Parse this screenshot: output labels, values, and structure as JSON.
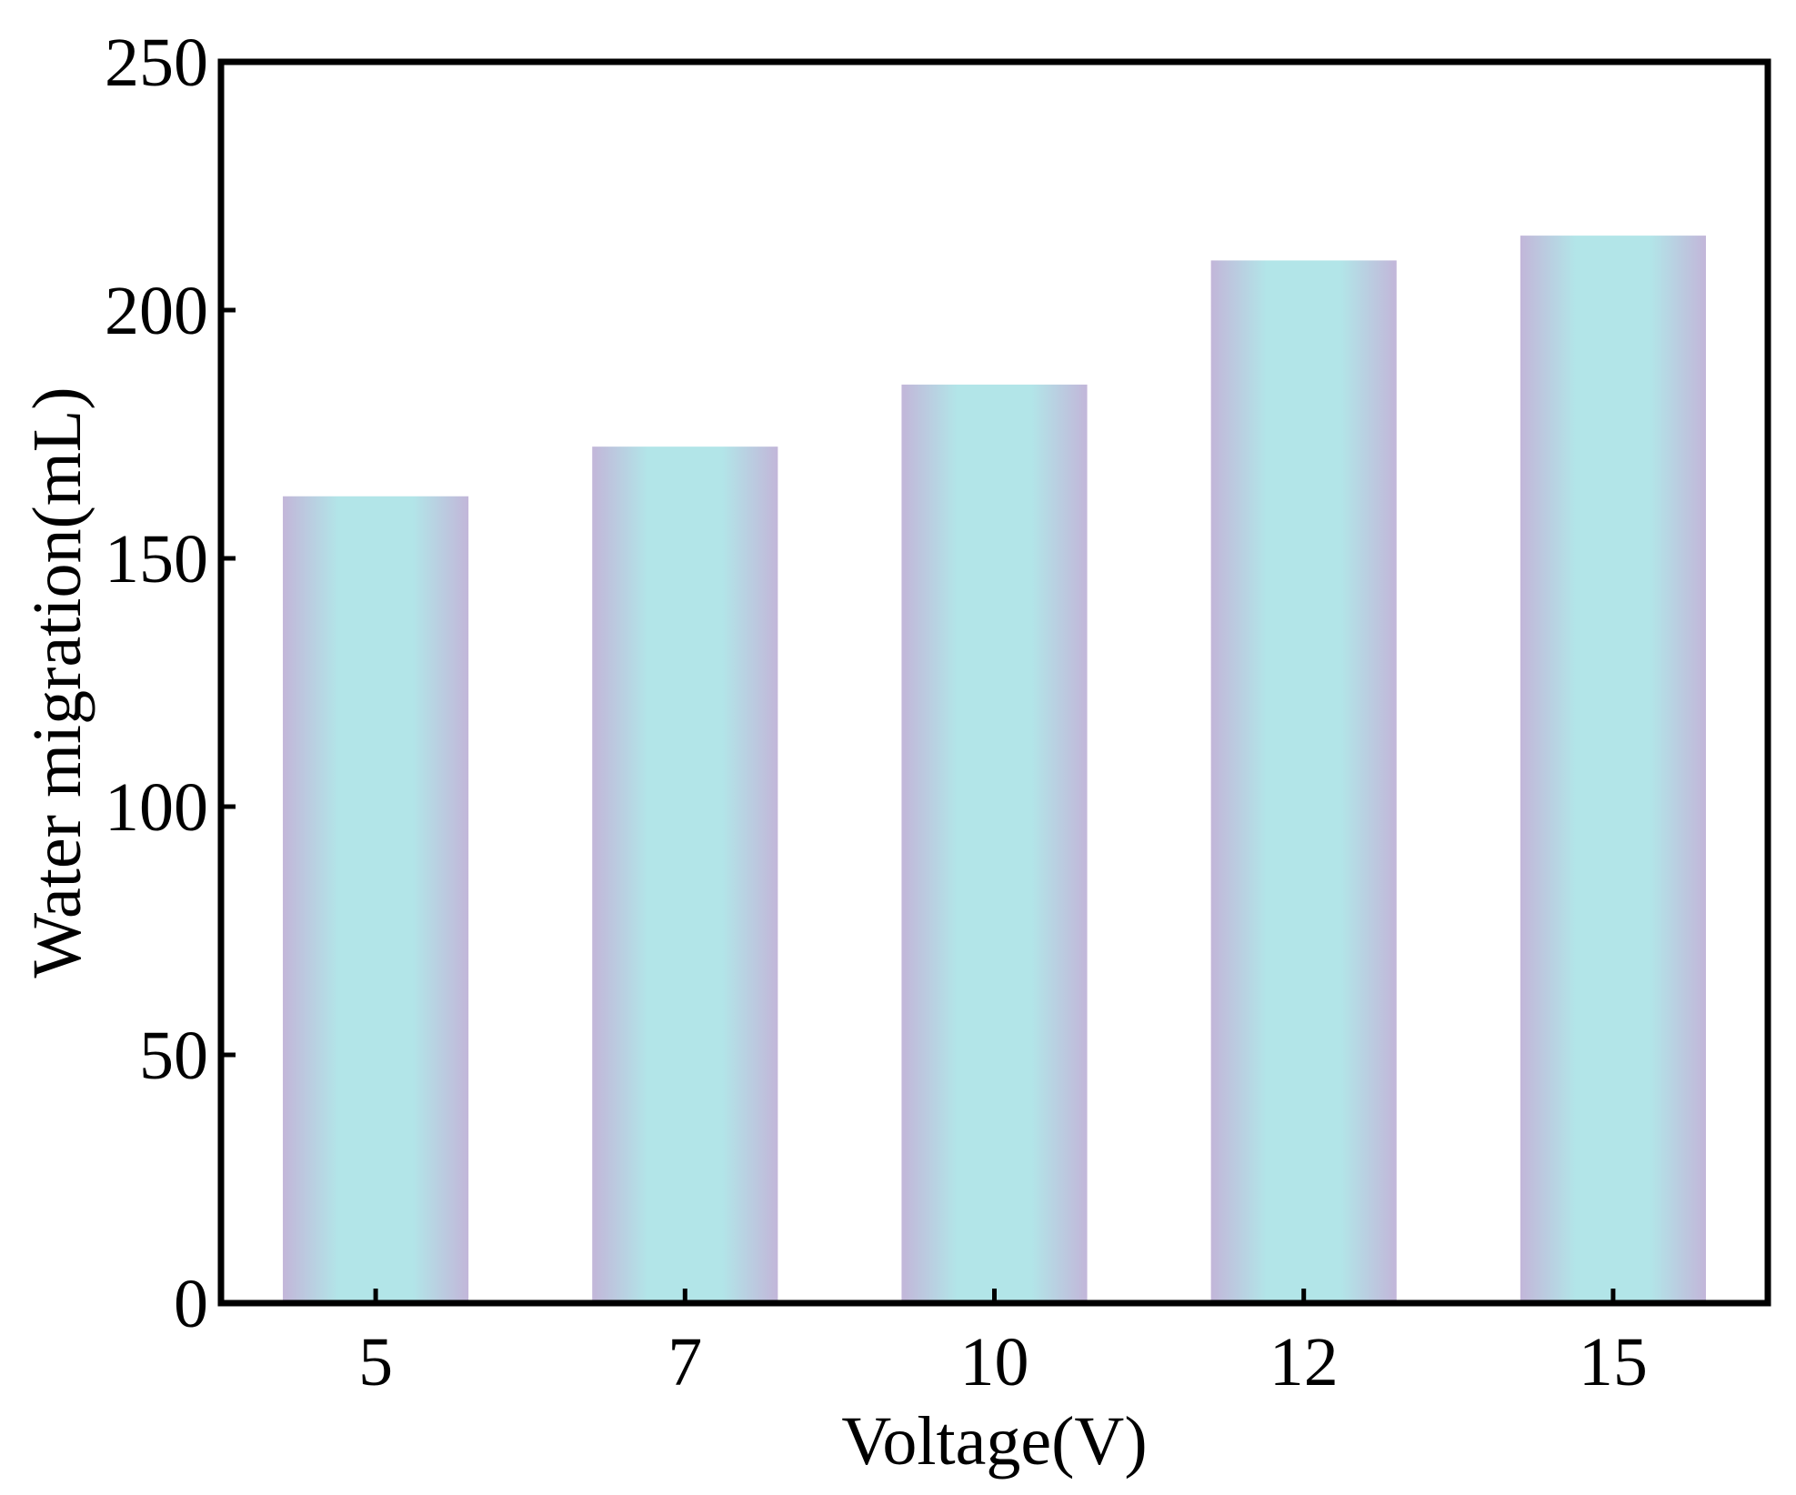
{
  "chart_data": {
    "type": "bar",
    "categories": [
      "5",
      "7",
      "10",
      "12",
      "15"
    ],
    "values": [
      162.5,
      172.5,
      185,
      210,
      215
    ],
    "title": "",
    "xlabel": "Voltage(V)",
    "ylabel": "Water migration(mL)",
    "ylim": [
      0,
      250
    ],
    "yticks": [
      0,
      50,
      100,
      150,
      200,
      250
    ],
    "grid": false,
    "legend": "none",
    "colors": {
      "bar_edge": "#c2b6d9",
      "bar_center": "#b2e5e8",
      "axis": "#000000"
    }
  }
}
